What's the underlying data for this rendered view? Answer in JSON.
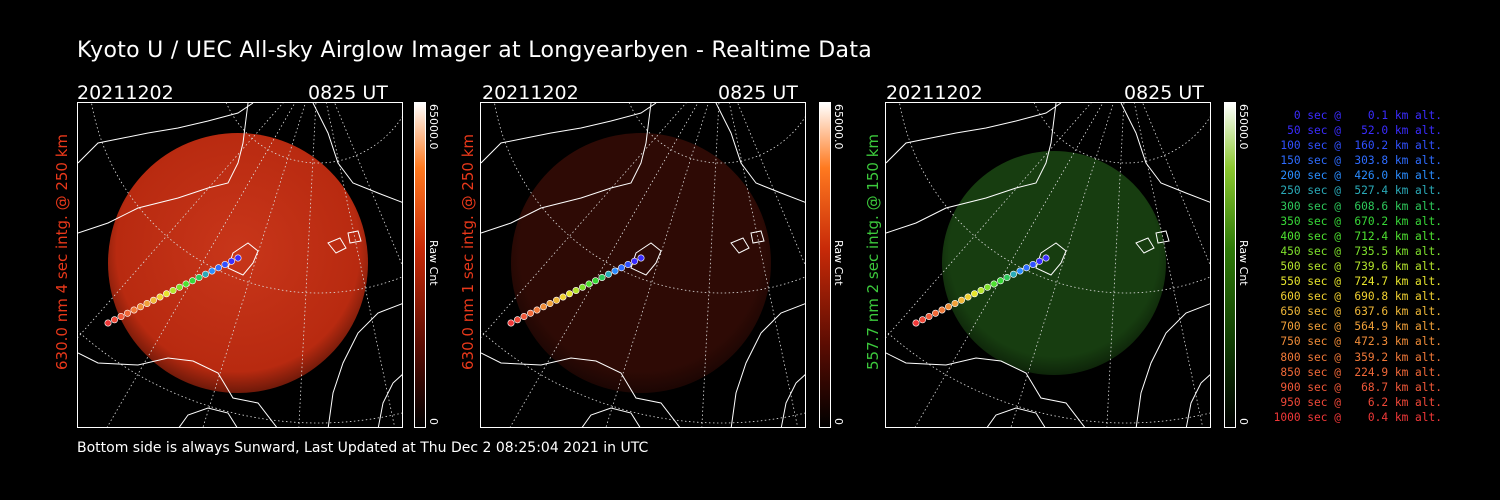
{
  "title": "Kyoto U / UEC All-sky Airglow Imager at Longyearbyen - Realtime Data",
  "colors": {
    "red_label": "#e8381a",
    "green_label": "#3cc83c",
    "sky_red": "#c02a10",
    "sky_dim_red": "#3a0d06",
    "sky_green": "#1c4a12"
  },
  "panels": [
    {
      "date": "20211202",
      "time": "0825 UT",
      "side_label": "630.0 nm 4 sec intg. @ 250 km",
      "label_color": "#e8381a",
      "sky": "bright-red",
      "colorbar": {
        "max": "65000.0",
        "unit": "Raw Cnt",
        "min": "0",
        "palette": "red"
      }
    },
    {
      "date": "20211202",
      "time": "0825 UT",
      "side_label": "630.0 nm 1 sec intg. @ 250 km",
      "label_color": "#e8381a",
      "sky": "dim-red",
      "colorbar": {
        "max": "65000.0",
        "unit": "Raw Cnt",
        "min": "0",
        "palette": "red"
      }
    },
    {
      "date": "20211202",
      "time": "0825 UT",
      "side_label": "557.7 nm 2 sec intg. @ 150 km",
      "label_color": "#3cc83c",
      "sky": "dim-green",
      "colorbar": {
        "max": "65000.0",
        "unit": "Raw Cnt",
        "min": "0",
        "palette": "green"
      }
    }
  ],
  "footer": "Bottom side is always Sunward, Last Updated at Thu Dec  2 08:25:04 2021 in UTC",
  "legend": [
    {
      "text": "   0 sec @    0.1 km alt.",
      "color": "#3a2cff"
    },
    {
      "text": "  50 sec @   52.0 km alt.",
      "color": "#3a2cff"
    },
    {
      "text": " 100 sec @  160.2 km alt.",
      "color": "#3050ff"
    },
    {
      "text": " 150 sec @  303.8 km alt.",
      "color": "#2e6cff"
    },
    {
      "text": " 200 sec @  426.0 km alt.",
      "color": "#2a8cff"
    },
    {
      "text": " 250 sec @  527.4 km alt.",
      "color": "#2aaab8"
    },
    {
      "text": " 300 sec @  608.6 km alt.",
      "color": "#2ec85a"
    },
    {
      "text": " 350 sec @  670.2 km alt.",
      "color": "#38d838"
    },
    {
      "text": " 400 sec @  712.4 km alt.",
      "color": "#4ee030"
    },
    {
      "text": " 450 sec @  735.5 km alt.",
      "color": "#7ee02c"
    },
    {
      "text": " 500 sec @  739.6 km alt.",
      "color": "#b4e42c"
    },
    {
      "text": " 550 sec @  724.7 km alt.",
      "color": "#e6e42c"
    },
    {
      "text": " 600 sec @  690.8 km alt.",
      "color": "#f0d030"
    },
    {
      "text": " 650 sec @  637.6 km alt.",
      "color": "#f0b838"
    },
    {
      "text": " 700 sec @  564.9 km alt.",
      "color": "#f0a038"
    },
    {
      "text": " 750 sec @  472.3 km alt.",
      "color": "#f08c38"
    },
    {
      "text": " 800 sec @  359.2 km alt.",
      "color": "#f07838"
    },
    {
      "text": " 850 sec @  224.9 km alt.",
      "color": "#f06838"
    },
    {
      "text": " 900 sec @   68.7 km alt.",
      "color": "#f05838"
    },
    {
      "text": " 950 sec @    6.2 km alt.",
      "color": "#f04838"
    },
    {
      "text": "1000 sec @    0.4 km alt.",
      "color": "#f03838"
    }
  ]
}
